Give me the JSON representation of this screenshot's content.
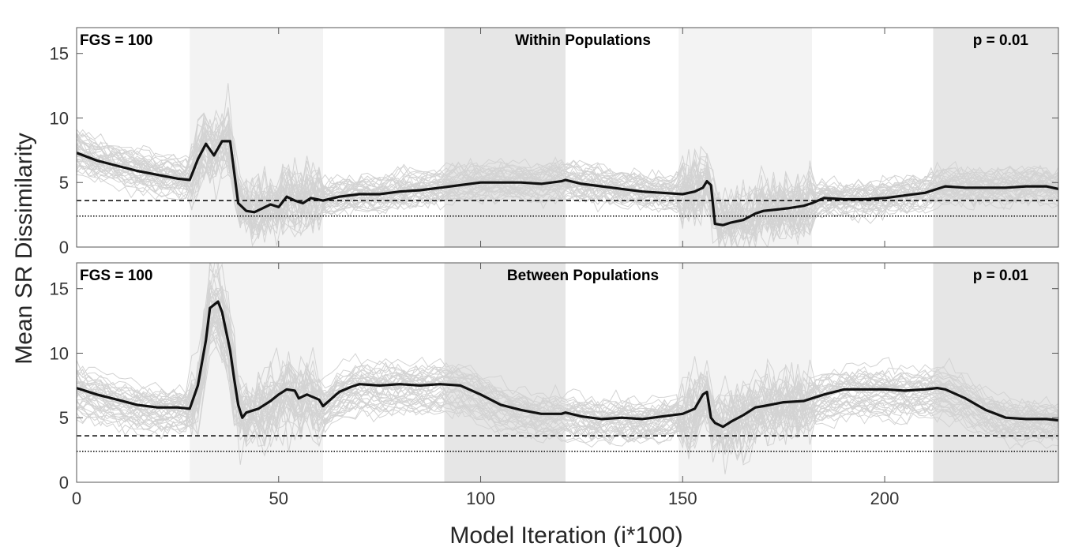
{
  "figure": {
    "xlabel": "Model Iteration (i*100)",
    "ylabel": "Mean SR Dissimilarity"
  },
  "chart_data": [
    {
      "type": "line",
      "title": "Within Populations",
      "annotation_left": "FGS = 100",
      "annotation_right": "p = 0.01",
      "xlim": [
        0,
        243
      ],
      "ylim": [
        0,
        17
      ],
      "xticks": [
        0,
        50,
        100,
        150,
        200
      ],
      "yticks": [
        0,
        5,
        10,
        15
      ],
      "shaded_bands": [
        {
          "x": [
            28,
            61
          ],
          "color": "#f3f3f3"
        },
        {
          "x": [
            91,
            121
          ],
          "color": "#e6e6e6"
        },
        {
          "x": [
            149,
            182
          ],
          "color": "#f3f3f3"
        },
        {
          "x": [
            212,
            243
          ],
          "color": "#e6e6e6"
        }
      ],
      "reference_lines": [
        {
          "y": 3.6,
          "style": "dashed"
        },
        {
          "y": 2.4,
          "style": "dotted"
        }
      ],
      "mean_series": {
        "x": [
          0,
          5,
          10,
          15,
          20,
          25,
          28,
          30,
          32,
          34,
          36,
          38,
          40,
          42,
          44,
          46,
          48,
          50,
          52,
          54,
          56,
          58,
          61,
          65,
          70,
          75,
          80,
          85,
          90,
          95,
          100,
          105,
          110,
          115,
          120,
          121,
          125,
          130,
          135,
          140,
          145,
          150,
          153,
          155,
          156,
          157,
          158,
          160,
          162,
          165,
          168,
          170,
          173,
          176,
          180,
          182,
          185,
          190,
          195,
          200,
          205,
          210,
          213,
          215,
          220,
          225,
          230,
          235,
          240,
          243
        ],
        "y": [
          7.3,
          6.7,
          6.3,
          5.9,
          5.6,
          5.3,
          5.2,
          6.8,
          8.0,
          7.1,
          8.2,
          8.2,
          3.4,
          2.8,
          2.7,
          3.0,
          3.3,
          3.1,
          3.9,
          3.6,
          3.4,
          3.8,
          3.6,
          3.9,
          4.1,
          4.1,
          4.3,
          4.4,
          4.6,
          4.8,
          5.0,
          5.0,
          5.0,
          4.9,
          5.1,
          5.2,
          4.9,
          4.7,
          4.5,
          4.3,
          4.2,
          4.1,
          4.3,
          4.6,
          5.1,
          4.8,
          1.8,
          1.7,
          1.9,
          2.1,
          2.6,
          2.8,
          2.9,
          3.0,
          3.2,
          3.4,
          3.8,
          3.7,
          3.7,
          3.8,
          4.0,
          4.2,
          4.5,
          4.7,
          4.6,
          4.6,
          4.6,
          4.7,
          4.7,
          4.5
        ]
      }
    },
    {
      "type": "line",
      "title": "Between Populations",
      "annotation_left": "FGS = 100",
      "annotation_right": "p = 0.01",
      "xlim": [
        0,
        243
      ],
      "ylim": [
        0,
        17
      ],
      "xticks": [
        0,
        50,
        100,
        150,
        200
      ],
      "yticks": [
        0,
        5,
        10,
        15
      ],
      "shaded_bands": [
        {
          "x": [
            28,
            61
          ],
          "color": "#f3f3f3"
        },
        {
          "x": [
            91,
            121
          ],
          "color": "#e6e6e6"
        },
        {
          "x": [
            149,
            182
          ],
          "color": "#f3f3f3"
        },
        {
          "x": [
            212,
            243
          ],
          "color": "#e6e6e6"
        }
      ],
      "reference_lines": [
        {
          "y": 3.6,
          "style": "dashed"
        },
        {
          "y": 2.4,
          "style": "dotted"
        }
      ],
      "mean_series": {
        "x": [
          0,
          5,
          10,
          15,
          20,
          25,
          28,
          30,
          32,
          33,
          35,
          36,
          38,
          39,
          40,
          41,
          42,
          45,
          48,
          50,
          52,
          54,
          55,
          57,
          60,
          61,
          65,
          68,
          70,
          75,
          80,
          85,
          90,
          95,
          100,
          105,
          110,
          115,
          120,
          121,
          125,
          130,
          135,
          140,
          145,
          150,
          153,
          155,
          156,
          157,
          158,
          160,
          162,
          165,
          168,
          170,
          175,
          180,
          182,
          185,
          190,
          195,
          200,
          205,
          210,
          213,
          215,
          220,
          225,
          230,
          235,
          240,
          243
        ],
        "y": [
          7.3,
          6.8,
          6.4,
          6.0,
          5.8,
          5.8,
          5.7,
          7.5,
          11.0,
          13.5,
          14.0,
          13.2,
          10.2,
          8.0,
          6.0,
          5.0,
          5.4,
          5.7,
          6.3,
          6.8,
          7.2,
          7.1,
          6.5,
          6.8,
          6.4,
          5.9,
          7.0,
          7.4,
          7.6,
          7.5,
          7.6,
          7.5,
          7.6,
          7.5,
          6.8,
          6.0,
          5.6,
          5.3,
          5.3,
          5.4,
          5.1,
          4.9,
          5.0,
          4.9,
          5.1,
          5.3,
          5.7,
          6.8,
          7.0,
          5.0,
          4.6,
          4.3,
          4.7,
          5.2,
          5.8,
          5.9,
          6.2,
          6.3,
          6.5,
          6.8,
          7.2,
          7.2,
          7.2,
          7.1,
          7.2,
          7.3,
          7.2,
          6.5,
          5.6,
          5.0,
          4.9,
          4.9,
          4.8
        ]
      }
    }
  ]
}
